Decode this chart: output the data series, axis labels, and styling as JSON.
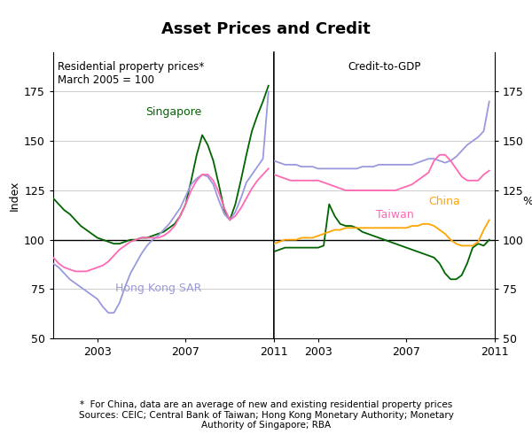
{
  "title": "Asset Prices and Credit",
  "left_panel_title": "Residential property prices*\nMarch 2005 = 100",
  "right_panel_title": "Credit-to-GDP",
  "left_ylabel": "Index",
  "right_ylabel": "%",
  "ylim": [
    50,
    195
  ],
  "yticks": [
    50,
    75,
    100,
    125,
    150,
    175
  ],
  "footnote": "*  For China, data are an average of new and existing residential property prices\nSources: CEIC; Central Bank of Taiwan; Hong Kong Monetary Authority; Monetary\nAuthority of Singapore; RBA",
  "left_panel": {
    "singapore": {
      "color": "#006400",
      "label": "Singapore",
      "x": [
        2001.0,
        2001.25,
        2001.5,
        2001.75,
        2002.0,
        2002.25,
        2002.5,
        2002.75,
        2003.0,
        2003.25,
        2003.5,
        2003.75,
        2004.0,
        2004.25,
        2004.5,
        2004.75,
        2005.0,
        2005.25,
        2005.5,
        2005.75,
        2006.0,
        2006.25,
        2006.5,
        2006.75,
        2007.0,
        2007.25,
        2007.5,
        2007.75,
        2008.0,
        2008.25,
        2008.5,
        2008.75,
        2009.0,
        2009.25,
        2009.5,
        2009.75,
        2010.0,
        2010.25,
        2010.5,
        2010.75
      ],
      "y": [
        121,
        118,
        115,
        113,
        110,
        107,
        105,
        103,
        101,
        100,
        99,
        98,
        98,
        99,
        100,
        100,
        101,
        101,
        102,
        103,
        104,
        106,
        108,
        112,
        118,
        130,
        143,
        153,
        148,
        140,
        128,
        115,
        110,
        118,
        130,
        143,
        155,
        163,
        170,
        178
      ]
    },
    "hong_kong": {
      "color": "#9999dd",
      "label": "Hong Kong SAR",
      "x": [
        2001.0,
        2001.25,
        2001.5,
        2001.75,
        2002.0,
        2002.25,
        2002.5,
        2002.75,
        2003.0,
        2003.25,
        2003.5,
        2003.75,
        2004.0,
        2004.25,
        2004.5,
        2004.75,
        2005.0,
        2005.25,
        2005.5,
        2005.75,
        2006.0,
        2006.25,
        2006.5,
        2006.75,
        2007.0,
        2007.25,
        2007.5,
        2007.75,
        2008.0,
        2008.25,
        2008.5,
        2008.75,
        2009.0,
        2009.25,
        2009.5,
        2009.75,
        2010.0,
        2010.25,
        2010.5,
        2010.75
      ],
      "y": [
        88,
        86,
        83,
        80,
        78,
        76,
        74,
        72,
        70,
        66,
        63,
        63,
        68,
        76,
        83,
        88,
        93,
        97,
        100,
        102,
        105,
        108,
        112,
        116,
        122,
        128,
        131,
        133,
        132,
        128,
        120,
        113,
        110,
        114,
        121,
        129,
        133,
        137,
        141,
        175
      ]
    },
    "china": {
      "color": "#FFA500",
      "label": "China",
      "x": [
        2001.0,
        2001.25,
        2001.5,
        2001.75,
        2002.0,
        2002.25,
        2002.5,
        2002.75,
        2003.0,
        2003.25,
        2003.5,
        2003.75,
        2004.0,
        2004.25,
        2004.5,
        2004.75,
        2005.0,
        2005.25,
        2005.5,
        2005.75,
        2006.0,
        2006.25,
        2006.5,
        2006.75,
        2007.0,
        2007.25,
        2007.5,
        2007.75,
        2008.0,
        2008.25,
        2008.5,
        2008.75,
        2009.0,
        2009.25,
        2009.5,
        2009.75,
        2010.0,
        2010.25,
        2010.5,
        2010.75
      ],
      "y": [
        null,
        null,
        null,
        null,
        null,
        null,
        null,
        null,
        null,
        null,
        null,
        null,
        null,
        null,
        null,
        null,
        null,
        null,
        null,
        null,
        null,
        null,
        null,
        null,
        null,
        null,
        null,
        null,
        null,
        null,
        null,
        null,
        null,
        null,
        null,
        null,
        null,
        null,
        null,
        null
      ]
    },
    "taiwan": {
      "color": "#FF69B4",
      "label": "Taiwan",
      "x": [
        2001.0,
        2001.25,
        2001.5,
        2001.75,
        2002.0,
        2002.25,
        2002.5,
        2002.75,
        2003.0,
        2003.25,
        2003.5,
        2003.75,
        2004.0,
        2004.25,
        2004.5,
        2004.75,
        2005.0,
        2005.25,
        2005.5,
        2005.75,
        2006.0,
        2006.25,
        2006.5,
        2006.75,
        2007.0,
        2007.25,
        2007.5,
        2007.75,
        2008.0,
        2008.25,
        2008.5,
        2008.75,
        2009.0,
        2009.25,
        2009.5,
        2009.75,
        2010.0,
        2010.25,
        2010.5,
        2010.75
      ],
      "y": [
        91,
        88,
        86,
        85,
        84,
        84,
        84,
        85,
        86,
        87,
        89,
        92,
        95,
        97,
        99,
        100,
        101,
        101,
        101,
        101,
        102,
        104,
        107,
        112,
        118,
        125,
        130,
        133,
        133,
        130,
        124,
        116,
        110,
        112,
        116,
        121,
        126,
        130,
        133,
        136
      ]
    }
  },
  "right_panel": {
    "singapore": {
      "color": "#006400",
      "x": [
        2001.0,
        2001.25,
        2001.5,
        2001.75,
        2002.0,
        2002.25,
        2002.5,
        2002.75,
        2003.0,
        2003.25,
        2003.5,
        2003.75,
        2004.0,
        2004.25,
        2004.5,
        2004.75,
        2005.0,
        2005.25,
        2005.5,
        2005.75,
        2006.0,
        2006.25,
        2006.5,
        2006.75,
        2007.0,
        2007.25,
        2007.5,
        2007.75,
        2008.0,
        2008.25,
        2008.5,
        2008.75,
        2009.0,
        2009.25,
        2009.5,
        2009.75,
        2010.0,
        2010.25,
        2010.5,
        2010.75
      ],
      "y": [
        94,
        95,
        96,
        96,
        96,
        96,
        96,
        96,
        96,
        97,
        118,
        112,
        108,
        107,
        107,
        106,
        104,
        103,
        102,
        101,
        100,
        99,
        98,
        97,
        96,
        95,
        94,
        93,
        92,
        91,
        88,
        83,
        80,
        80,
        82,
        88,
        96,
        98,
        97,
        100
      ]
    },
    "hong_kong": {
      "color": "#9999dd",
      "x": [
        2001.0,
        2001.25,
        2001.5,
        2001.75,
        2002.0,
        2002.25,
        2002.5,
        2002.75,
        2003.0,
        2003.25,
        2003.5,
        2003.75,
        2004.0,
        2004.25,
        2004.5,
        2004.75,
        2005.0,
        2005.25,
        2005.5,
        2005.75,
        2006.0,
        2006.25,
        2006.5,
        2006.75,
        2007.0,
        2007.25,
        2007.5,
        2007.75,
        2008.0,
        2008.25,
        2008.5,
        2008.75,
        2009.0,
        2009.25,
        2009.5,
        2009.75,
        2010.0,
        2010.25,
        2010.5,
        2010.75
      ],
      "y": [
        140,
        139,
        138,
        138,
        138,
        137,
        137,
        137,
        136,
        136,
        136,
        136,
        136,
        136,
        136,
        136,
        137,
        137,
        137,
        138,
        138,
        138,
        138,
        138,
        138,
        138,
        139,
        140,
        141,
        141,
        140,
        139,
        140,
        142,
        145,
        148,
        150,
        152,
        155,
        170
      ]
    },
    "china": {
      "color": "#FFA500",
      "x": [
        2001.0,
        2001.25,
        2001.5,
        2001.75,
        2002.0,
        2002.25,
        2002.5,
        2002.75,
        2003.0,
        2003.25,
        2003.5,
        2003.75,
        2004.0,
        2004.25,
        2004.5,
        2004.75,
        2005.0,
        2005.25,
        2005.5,
        2005.75,
        2006.0,
        2006.25,
        2006.5,
        2006.75,
        2007.0,
        2007.25,
        2007.5,
        2007.75,
        2008.0,
        2008.25,
        2008.5,
        2008.75,
        2009.0,
        2009.25,
        2009.5,
        2009.75,
        2010.0,
        2010.25,
        2010.5,
        2010.75
      ],
      "y": [
        98,
        99,
        100,
        100,
        100,
        101,
        101,
        101,
        102,
        103,
        104,
        105,
        105,
        106,
        106,
        106,
        106,
        106,
        106,
        106,
        106,
        106,
        106,
        106,
        106,
        107,
        107,
        108,
        108,
        107,
        105,
        103,
        100,
        98,
        97,
        97,
        97,
        99,
        105,
        110
      ]
    },
    "taiwan": {
      "color": "#FF69B4",
      "x": [
        2001.0,
        2001.25,
        2001.5,
        2001.75,
        2002.0,
        2002.25,
        2002.5,
        2002.75,
        2003.0,
        2003.25,
        2003.5,
        2003.75,
        2004.0,
        2004.25,
        2004.5,
        2004.75,
        2005.0,
        2005.25,
        2005.5,
        2005.75,
        2006.0,
        2006.25,
        2006.5,
        2006.75,
        2007.0,
        2007.25,
        2007.5,
        2007.75,
        2008.0,
        2008.25,
        2008.5,
        2008.75,
        2009.0,
        2009.25,
        2009.5,
        2009.75,
        2010.0,
        2010.25,
        2010.5,
        2010.75
      ],
      "y": [
        133,
        132,
        131,
        130,
        130,
        130,
        130,
        130,
        130,
        129,
        128,
        127,
        126,
        125,
        125,
        125,
        125,
        125,
        125,
        125,
        125,
        125,
        125,
        126,
        127,
        128,
        130,
        132,
        134,
        140,
        143,
        143,
        140,
        136,
        132,
        130,
        130,
        130,
        133,
        135
      ]
    }
  }
}
